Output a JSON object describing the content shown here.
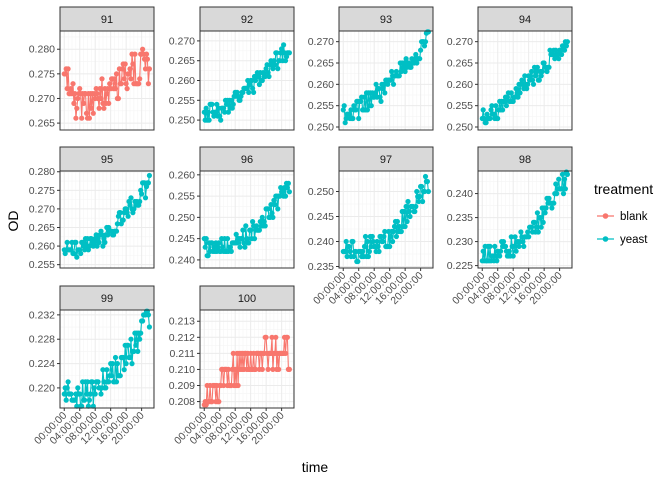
{
  "chart_data": {
    "type": "line",
    "xlabel": "time",
    "ylabel": "OD",
    "x_tick_labels": [
      "00:00:00",
      "04:00:00",
      "08:00:00",
      "12:00:00",
      "16:00:00",
      "20:00:00"
    ],
    "x_ticks_hours": [
      0,
      4,
      8,
      12,
      16,
      20
    ],
    "x_range_hours": [
      -1.1,
      23.2
    ],
    "grid": true,
    "legend": {
      "title": "treatment",
      "placement": "right",
      "entries": [
        {
          "name": "blank",
          "color": "#F8766D"
        },
        {
          "name": "yeast",
          "color": "#00BFC4"
        }
      ]
    },
    "panels": [
      {
        "label": "91",
        "treatment": "blank",
        "ylim": [
          0.2636,
          0.2837
        ],
        "yticks": [
          0.265,
          0.27,
          0.275,
          0.28
        ],
        "ytick_labels": [
          "0.265",
          "0.270",
          "0.275",
          "0.280"
        ],
        "key_points": [
          [
            0,
            0.275
          ],
          [
            2,
            0.27
          ],
          [
            4,
            0.269
          ],
          [
            6,
            0.268
          ],
          [
            8,
            0.27
          ],
          [
            10,
            0.271
          ],
          [
            12,
            0.272
          ],
          [
            14,
            0.273
          ],
          [
            16,
            0.275
          ],
          [
            18,
            0.276
          ],
          [
            20,
            0.277
          ],
          [
            22,
            0.276
          ]
        ]
      },
      {
        "label": "92",
        "treatment": "yeast",
        "ylim": [
          0.2475,
          0.2725
        ],
        "yticks": [
          0.25,
          0.255,
          0.26,
          0.265,
          0.27
        ],
        "ytick_labels": [
          "0.250",
          "0.255",
          "0.260",
          "0.265",
          "0.270"
        ],
        "key_points": [
          [
            0,
            0.252
          ],
          [
            4,
            0.252
          ],
          [
            8,
            0.255
          ],
          [
            12,
            0.259
          ],
          [
            16,
            0.262
          ],
          [
            20,
            0.266
          ],
          [
            22,
            0.268
          ]
        ]
      },
      {
        "label": "93",
        "treatment": "yeast",
        "ylim": [
          0.2493,
          0.2725
        ],
        "yticks": [
          0.25,
          0.255,
          0.26,
          0.265,
          0.27
        ],
        "ytick_labels": [
          "0.250",
          "0.255",
          "0.260",
          "0.265",
          "0.270"
        ],
        "key_points": [
          [
            0,
            0.253
          ],
          [
            4,
            0.254
          ],
          [
            8,
            0.257
          ],
          [
            12,
            0.26
          ],
          [
            16,
            0.264
          ],
          [
            20,
            0.268
          ],
          [
            22,
            0.271
          ]
        ]
      },
      {
        "label": "94",
        "treatment": "yeast",
        "ylim": [
          0.2493,
          0.2725
        ],
        "yticks": [
          0.25,
          0.255,
          0.26,
          0.265,
          0.27
        ],
        "ytick_labels": [
          "0.250",
          "0.255",
          "0.260",
          "0.265",
          "0.270"
        ],
        "key_points": [
          [
            0,
            0.252
          ],
          [
            4,
            0.254
          ],
          [
            8,
            0.257
          ],
          [
            12,
            0.261
          ],
          [
            16,
            0.264
          ],
          [
            20,
            0.268
          ],
          [
            22,
            0.271
          ]
        ]
      },
      {
        "label": "95",
        "treatment": "yeast",
        "ylim": [
          0.2541,
          0.2802
        ],
        "yticks": [
          0.255,
          0.26,
          0.265,
          0.27,
          0.275,
          0.28
        ],
        "ytick_labels": [
          "0.255",
          "0.260",
          "0.265",
          "0.270",
          "0.275",
          "0.280"
        ],
        "key_points": [
          [
            0,
            0.259
          ],
          [
            4,
            0.259
          ],
          [
            8,
            0.261
          ],
          [
            12,
            0.264
          ],
          [
            16,
            0.269
          ],
          [
            20,
            0.274
          ],
          [
            22,
            0.277
          ]
        ]
      },
      {
        "label": "96",
        "treatment": "yeast",
        "ylim": [
          0.2381,
          0.2609
        ],
        "yticks": [
          0.24,
          0.245,
          0.25,
          0.255,
          0.26
        ],
        "ytick_labels": [
          "0.240",
          "0.245",
          "0.250",
          "0.255",
          "0.260"
        ],
        "key_points": [
          [
            0,
            0.243
          ],
          [
            4,
            0.243
          ],
          [
            8,
            0.244
          ],
          [
            12,
            0.246
          ],
          [
            16,
            0.25
          ],
          [
            20,
            0.255
          ],
          [
            22,
            0.258
          ]
        ]
      },
      {
        "label": "97",
        "treatment": "yeast",
        "ylim": [
          0.2347,
          0.2541
        ],
        "yticks": [
          0.235,
          0.24,
          0.245,
          0.25
        ],
        "ytick_labels": [
          "0.235",
          "0.240",
          "0.245",
          "0.250"
        ],
        "key_points": [
          [
            0,
            0.238
          ],
          [
            4,
            0.238
          ],
          [
            8,
            0.239
          ],
          [
            12,
            0.241
          ],
          [
            16,
            0.245
          ],
          [
            20,
            0.25
          ],
          [
            22,
            0.252
          ]
        ]
      },
      {
        "label": "98",
        "treatment": "yeast",
        "ylim": [
          0.2245,
          0.2447
        ],
        "yticks": [
          0.225,
          0.23,
          0.235,
          0.24
        ],
        "ytick_labels": [
          "0.225",
          "0.230",
          "0.235",
          "0.240"
        ],
        "key_points": [
          [
            0,
            0.228
          ],
          [
            4,
            0.228
          ],
          [
            8,
            0.229
          ],
          [
            12,
            0.232
          ],
          [
            16,
            0.236
          ],
          [
            20,
            0.241
          ],
          [
            22,
            0.243
          ]
        ]
      },
      {
        "label": "99",
        "treatment": "yeast",
        "ylim": [
          0.2167,
          0.2328
        ],
        "yticks": [
          0.22,
          0.224,
          0.228,
          0.232
        ],
        "ytick_labels": [
          "0.220",
          "0.224",
          "0.228",
          "0.232"
        ],
        "key_points": [
          [
            0,
            0.219
          ],
          [
            4,
            0.219
          ],
          [
            8,
            0.219
          ],
          [
            12,
            0.222
          ],
          [
            16,
            0.225
          ],
          [
            20,
            0.229
          ],
          [
            22,
            0.232
          ]
        ]
      },
      {
        "label": "100",
        "treatment": "blank",
        "ylim": [
          0.2076,
          0.2137
        ],
        "yticks": [
          0.208,
          0.209,
          0.21,
          0.211,
          0.212,
          0.213
        ],
        "ytick_labels": [
          "0.208",
          "0.209",
          "0.210",
          "0.211",
          "0.212",
          "0.213"
        ],
        "key_points": [
          [
            0,
            0.208
          ],
          [
            4,
            0.209
          ],
          [
            8,
            0.21
          ],
          [
            12,
            0.211
          ],
          [
            16,
            0.211
          ],
          [
            20,
            0.211
          ],
          [
            22,
            0.211
          ]
        ]
      }
    ]
  },
  "colors": {
    "blank": "#F8766D",
    "yeast": "#00BFC4"
  }
}
